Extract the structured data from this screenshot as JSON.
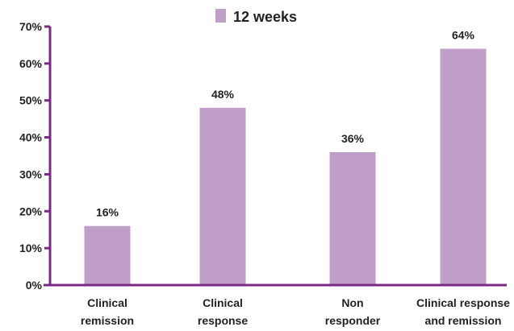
{
  "chart_data": {
    "type": "bar",
    "categories": [
      [
        "Clinical",
        "remission"
      ],
      [
        "Clinical",
        "response"
      ],
      [
        "Non",
        "responder"
      ],
      [
        "Clinical response",
        "and remission"
      ]
    ],
    "series": [
      {
        "name": "12 weeks",
        "values": [
          16,
          48,
          36,
          64
        ]
      }
    ],
    "data_labels": [
      "16%",
      "48%",
      "36%",
      "64%"
    ],
    "y_ticks": [
      "0%",
      "10%",
      "20%",
      "30%",
      "40%",
      "50%",
      "60%",
      "70%"
    ],
    "ylim": [
      0,
      70
    ],
    "grid": false,
    "legend_position": "top-center",
    "colors": {
      "bar": "#bf9fc8",
      "axis": "#7a2a85",
      "text": "#222222"
    }
  }
}
